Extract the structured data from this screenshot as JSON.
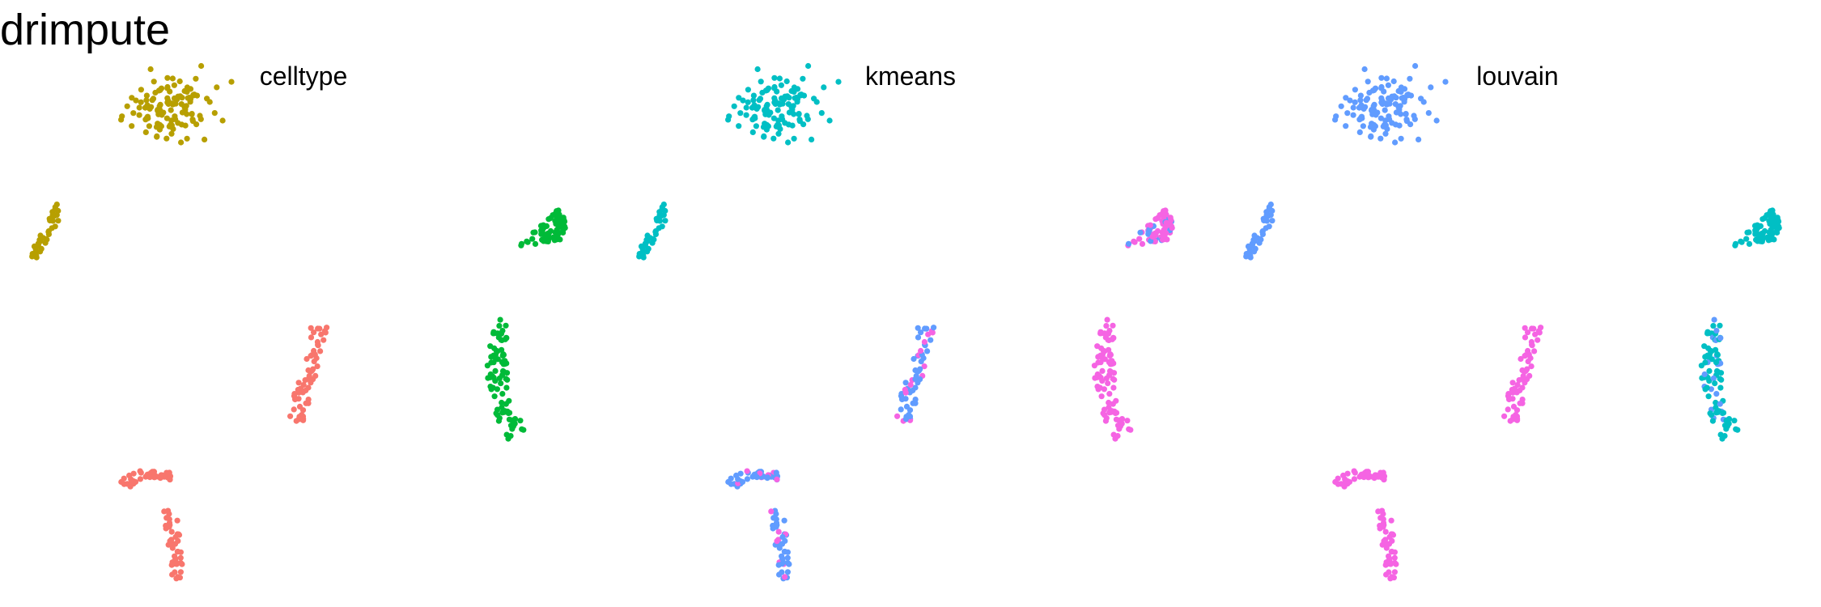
{
  "title": "drimpute",
  "colors": {
    "red": "#F8766D",
    "olive": "#B79F00",
    "green": "#00BA38",
    "cyan": "#00BFC4",
    "blue": "#619CFF",
    "pink": "#F564E3"
  },
  "chart_data": [
    {
      "type": "scatter",
      "title": "celltype",
      "xlabel": "",
      "ylabel": "",
      "grid": false,
      "axes": false,
      "legend": "none",
      "clusters": [
        {
          "shape": "blob",
          "center": [
            205,
            135
          ],
          "spread": [
            55,
            35
          ],
          "n": 120,
          "colors": [
            "olive"
          ]
        },
        {
          "shape": "line",
          "from": [
            75,
            255
          ],
          "to": [
            40,
            320
          ],
          "width": 6,
          "n": 40,
          "colors": [
            "olive"
          ]
        },
        {
          "shape": "triangle",
          "points": [
            [
              695,
              250
            ],
            [
              640,
              305
            ],
            [
              700,
              295
            ]
          ],
          "n": 70,
          "colors": [
            "green"
          ]
        },
        {
          "shape": "curve",
          "points": [
            [
              625,
              400
            ],
            [
              605,
              450
            ],
            [
              615,
              500
            ],
            [
              640,
              540
            ]
          ],
          "width": 12,
          "n": 90,
          "colors": [
            "green"
          ]
        },
        {
          "shape": "line",
          "from": [
            395,
            400
          ],
          "to": [
            365,
            525
          ],
          "width": 10,
          "n": 60,
          "colors": [
            "red"
          ]
        },
        {
          "shape": "curve",
          "points": [
            [
              150,
              600
            ],
            [
              175,
              580
            ],
            [
              205,
              590
            ]
          ],
          "width": 10,
          "n": 45,
          "colors": [
            "red"
          ]
        },
        {
          "shape": "line",
          "from": [
            210,
            630
          ],
          "to": [
            222,
            720
          ],
          "width": 8,
          "n": 45,
          "colors": [
            "red"
          ]
        }
      ]
    },
    {
      "type": "scatter",
      "title": "kmeans",
      "xlabel": "",
      "ylabel": "",
      "grid": false,
      "axes": false,
      "legend": "none",
      "clusters": [
        {
          "shape": "blob",
          "center": [
            205,
            135
          ],
          "spread": [
            55,
            35
          ],
          "n": 120,
          "colors": [
            "cyan"
          ]
        },
        {
          "shape": "line",
          "from": [
            75,
            255
          ],
          "to": [
            40,
            320
          ],
          "width": 6,
          "n": 40,
          "colors": [
            "cyan"
          ]
        },
        {
          "shape": "triangle",
          "points": [
            [
              695,
              250
            ],
            [
              640,
              305
            ],
            [
              700,
              295
            ]
          ],
          "n": 70,
          "colors": [
            "pink",
            "pink",
            "pink",
            "blue"
          ]
        },
        {
          "shape": "curve",
          "points": [
            [
              625,
              400
            ],
            [
              605,
              450
            ],
            [
              615,
              500
            ],
            [
              640,
              540
            ]
          ],
          "width": 12,
          "n": 90,
          "colors": [
            "pink"
          ]
        },
        {
          "shape": "line",
          "from": [
            395,
            400
          ],
          "to": [
            365,
            525
          ],
          "width": 10,
          "n": 60,
          "colors": [
            "blue",
            "blue",
            "blue",
            "blue",
            "pink"
          ]
        },
        {
          "shape": "curve",
          "points": [
            [
              150,
              600
            ],
            [
              175,
              580
            ],
            [
              205,
              590
            ]
          ],
          "width": 10,
          "n": 45,
          "colors": [
            "blue",
            "blue",
            "blue",
            "pink"
          ]
        },
        {
          "shape": "line",
          "from": [
            210,
            630
          ],
          "to": [
            222,
            720
          ],
          "width": 8,
          "n": 45,
          "colors": [
            "blue",
            "blue",
            "blue",
            "blue",
            "pink"
          ]
        }
      ]
    },
    {
      "type": "scatter",
      "title": "louvain",
      "xlabel": "",
      "ylabel": "",
      "grid": false,
      "axes": false,
      "legend": "none",
      "clusters": [
        {
          "shape": "blob",
          "center": [
            205,
            135
          ],
          "spread": [
            55,
            35
          ],
          "n": 120,
          "colors": [
            "blue"
          ]
        },
        {
          "shape": "line",
          "from": [
            75,
            255
          ],
          "to": [
            40,
            320
          ],
          "width": 6,
          "n": 40,
          "colors": [
            "blue"
          ]
        },
        {
          "shape": "triangle",
          "points": [
            [
              695,
              250
            ],
            [
              640,
              305
            ],
            [
              700,
              295
            ]
          ],
          "n": 70,
          "colors": [
            "cyan"
          ]
        },
        {
          "shape": "curve",
          "points": [
            [
              625,
              400
            ],
            [
              605,
              450
            ],
            [
              615,
              500
            ],
            [
              640,
              540
            ]
          ],
          "width": 12,
          "n": 90,
          "colors": [
            "cyan",
            "cyan",
            "cyan",
            "cyan",
            "blue"
          ]
        },
        {
          "shape": "line",
          "from": [
            395,
            400
          ],
          "to": [
            365,
            525
          ],
          "width": 10,
          "n": 60,
          "colors": [
            "pink"
          ]
        },
        {
          "shape": "curve",
          "points": [
            [
              150,
              600
            ],
            [
              175,
              580
            ],
            [
              205,
              590
            ]
          ],
          "width": 10,
          "n": 45,
          "colors": [
            "pink"
          ]
        },
        {
          "shape": "line",
          "from": [
            210,
            630
          ],
          "to": [
            222,
            720
          ],
          "width": 8,
          "n": 45,
          "colors": [
            "pink"
          ]
        }
      ]
    }
  ]
}
